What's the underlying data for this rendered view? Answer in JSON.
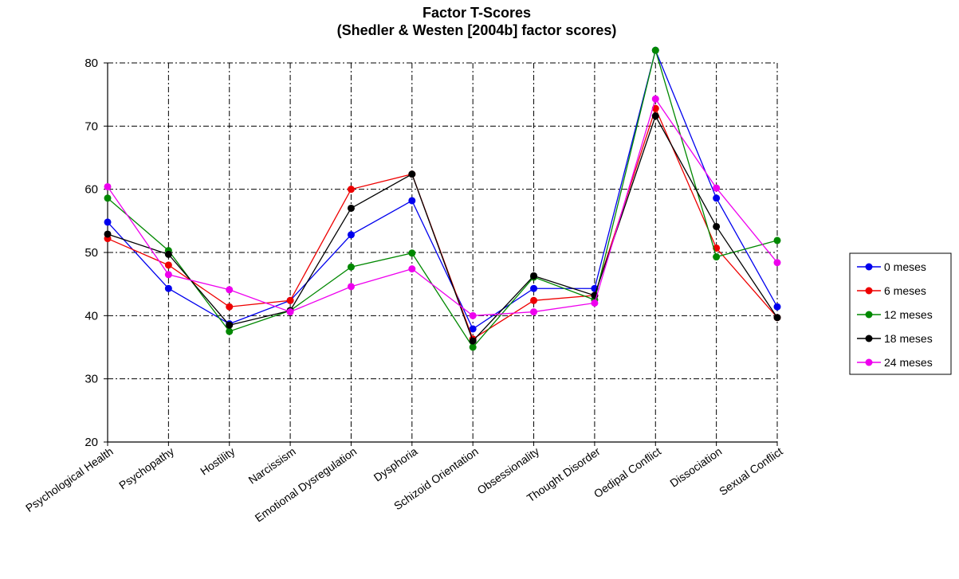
{
  "chart_data": {
    "type": "line",
    "title": "Factor T-Scores",
    "subtitle": "(Shedler & Westen [2004b] factor scores)",
    "xlabel": "",
    "ylabel": "",
    "ylim": [
      20,
      80
    ],
    "yticks": [
      20,
      30,
      40,
      50,
      60,
      70,
      80
    ],
    "grid": true,
    "legend_position": "right",
    "categories": [
      "Psychological Health",
      "Psychopathy",
      "Hostility",
      "Narcissism",
      "Emotional Dysregulation",
      "Dysphoria",
      "Schizoid Orientation",
      "Obsessionality",
      "Thought Disorder",
      "Oedipal Conflict",
      "Dissociation",
      "Sexual Conflict"
    ],
    "series": [
      {
        "name": "0 meses",
        "color": "#0000ee",
        "values": [
          54.8,
          44.3,
          38.7,
          42.4,
          52.8,
          58.2,
          37.9,
          44.3,
          44.3,
          82.0,
          58.6,
          41.4
        ]
      },
      {
        "name": "6 meses",
        "color": "#ee0000",
        "values": [
          52.2,
          48.0,
          41.4,
          42.4,
          60.0,
          62.4,
          36.3,
          42.4,
          43.2,
          72.8,
          50.7,
          39.7
        ]
      },
      {
        "name": "12 meses",
        "color": "#008800",
        "values": [
          58.6,
          50.3,
          37.5,
          40.8,
          47.7,
          49.9,
          35.0,
          46.1,
          42.5,
          82.0,
          49.3,
          51.9
        ]
      },
      {
        "name": "18 meses",
        "color": "#000000",
        "values": [
          52.9,
          49.7,
          38.5,
          40.8,
          57.0,
          62.4,
          36.0,
          46.3,
          43.2,
          71.6,
          54.1,
          39.7
        ]
      },
      {
        "name": "24 meses",
        "color": "#ee00ee",
        "values": [
          60.4,
          46.5,
          44.1,
          40.6,
          44.6,
          47.4,
          40.0,
          40.6,
          42.0,
          74.3,
          60.2,
          48.4
        ]
      }
    ]
  }
}
